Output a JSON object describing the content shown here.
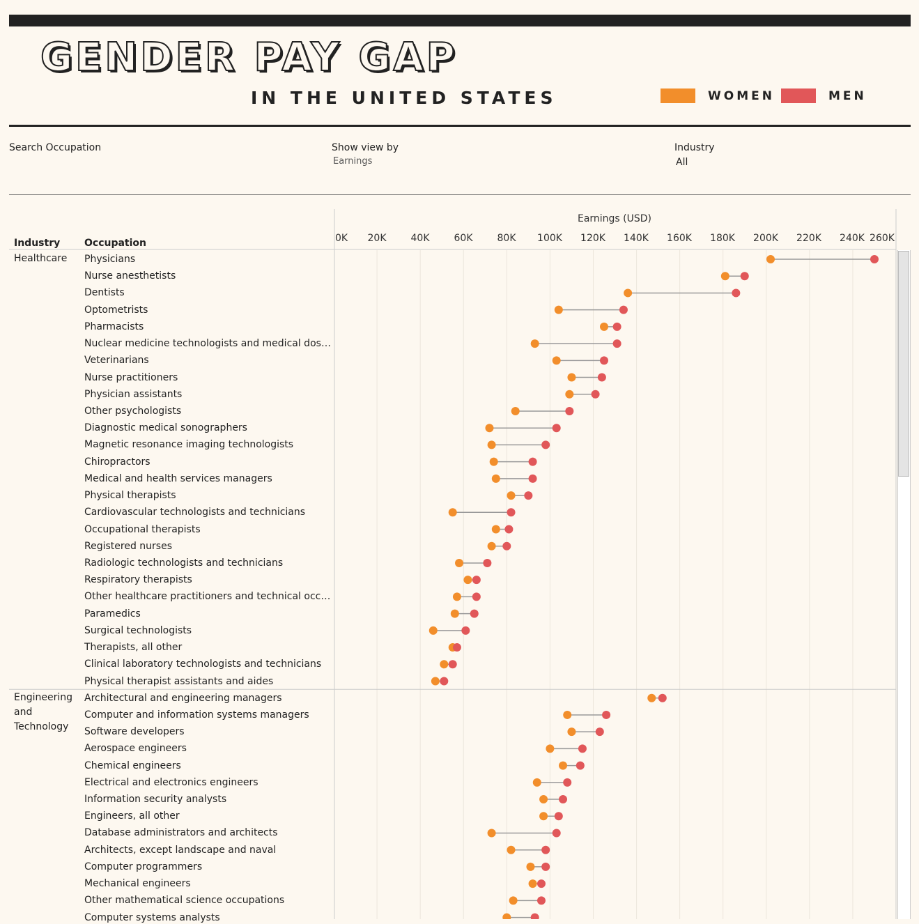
{
  "title": "GENDER PAY GAP",
  "subtitle": "IN THE UNITED STATES",
  "legend": [
    {
      "label": "WOMEN",
      "color": "#f28e2b"
    },
    {
      "label": "MEN",
      "color": "#e15759"
    }
  ],
  "filters": {
    "search_label": "Search Occupation",
    "view_label": "Show view by",
    "view_value": "Earnings",
    "industry_label": "Industry",
    "industry_value": "All"
  },
  "table_headers": {
    "industry": "Industry",
    "occupation": "Occupation"
  },
  "chart_data": {
    "type": "dumbbell",
    "xlabel": "Earnings (USD)",
    "xlim": [
      0,
      260000
    ],
    "xticks": [
      "0K",
      "20K",
      "40K",
      "60K",
      "80K",
      "100K",
      "120K",
      "140K",
      "160K",
      "180K",
      "200K",
      "220K",
      "240K",
      "260K"
    ],
    "series_colors": {
      "women": "#f28e2b",
      "men": "#e15759"
    },
    "groups": [
      {
        "industry": "Healthcare",
        "rows": [
          {
            "occupation": "Physicians",
            "women": 202000,
            "men": 250000
          },
          {
            "occupation": "Nurse anesthetists",
            "women": 181000,
            "men": 190000
          },
          {
            "occupation": "Dentists",
            "women": 136000,
            "men": 186000
          },
          {
            "occupation": "Optometrists",
            "women": 104000,
            "men": 134000
          },
          {
            "occupation": "Pharmacists",
            "women": 125000,
            "men": 131000
          },
          {
            "occupation": "Nuclear medicine technologists and medical dosime..",
            "women": 93000,
            "men": 131000
          },
          {
            "occupation": "Veterinarians",
            "women": 103000,
            "men": 125000
          },
          {
            "occupation": "Nurse practitioners",
            "women": 110000,
            "men": 124000
          },
          {
            "occupation": "Physician assistants",
            "women": 109000,
            "men": 121000
          },
          {
            "occupation": "Other psychologists",
            "women": 84000,
            "men": 109000
          },
          {
            "occupation": "Diagnostic medical sonographers",
            "women": 72000,
            "men": 103000
          },
          {
            "occupation": "Magnetic resonance imaging technologists",
            "women": 73000,
            "men": 98000
          },
          {
            "occupation": "Chiropractors",
            "women": 74000,
            "men": 92000
          },
          {
            "occupation": "Medical and health services managers",
            "women": 75000,
            "men": 92000
          },
          {
            "occupation": "Physical therapists",
            "women": 82000,
            "men": 90000
          },
          {
            "occupation": "Cardiovascular technologists and technicians",
            "women": 55000,
            "men": 82000
          },
          {
            "occupation": "Occupational therapists",
            "women": 75000,
            "men": 81000
          },
          {
            "occupation": "Registered nurses",
            "women": 73000,
            "men": 80000
          },
          {
            "occupation": "Radiologic technologists and technicians",
            "women": 58000,
            "men": 71000
          },
          {
            "occupation": "Respiratory therapists",
            "women": 62000,
            "men": 66000
          },
          {
            "occupation": "Other healthcare practitioners and technical occupa..",
            "women": 57000,
            "men": 66000
          },
          {
            "occupation": "Paramedics",
            "women": 56000,
            "men": 65000
          },
          {
            "occupation": "Surgical technologists",
            "women": 46000,
            "men": 61000
          },
          {
            "occupation": "Therapists, all other",
            "women": 55000,
            "men": 57000
          },
          {
            "occupation": "Clinical laboratory technologists and technicians",
            "women": 51000,
            "men": 55000
          },
          {
            "occupation": "Physical therapist assistants and aides",
            "women": 47000,
            "men": 51000
          }
        ]
      },
      {
        "industry": "Engineering and Technology",
        "rows": [
          {
            "occupation": "Architectural and engineering managers",
            "women": 147000,
            "men": 152000
          },
          {
            "occupation": "Computer and information systems managers",
            "women": 108000,
            "men": 126000
          },
          {
            "occupation": "Software developers",
            "women": 110000,
            "men": 123000
          },
          {
            "occupation": "Aerospace engineers",
            "women": 100000,
            "men": 115000
          },
          {
            "occupation": "Chemical engineers",
            "women": 106000,
            "men": 114000
          },
          {
            "occupation": "Electrical and electronics engineers",
            "women": 94000,
            "men": 108000
          },
          {
            "occupation": "Information security analysts",
            "women": 97000,
            "men": 106000
          },
          {
            "occupation": "Engineers, all other",
            "women": 97000,
            "men": 104000
          },
          {
            "occupation": "Database administrators and architects",
            "women": 73000,
            "men": 103000
          },
          {
            "occupation": "Architects, except landscape and naval",
            "women": 82000,
            "men": 98000
          },
          {
            "occupation": "Computer programmers",
            "women": 91000,
            "men": 98000
          },
          {
            "occupation": "Mechanical engineers",
            "women": 92000,
            "men": 96000
          },
          {
            "occupation": "Other mathematical science occupations",
            "women": 83000,
            "men": 96000
          },
          {
            "occupation": "Computer systems analysts",
            "women": 80000,
            "men": 93000
          }
        ]
      }
    ]
  }
}
